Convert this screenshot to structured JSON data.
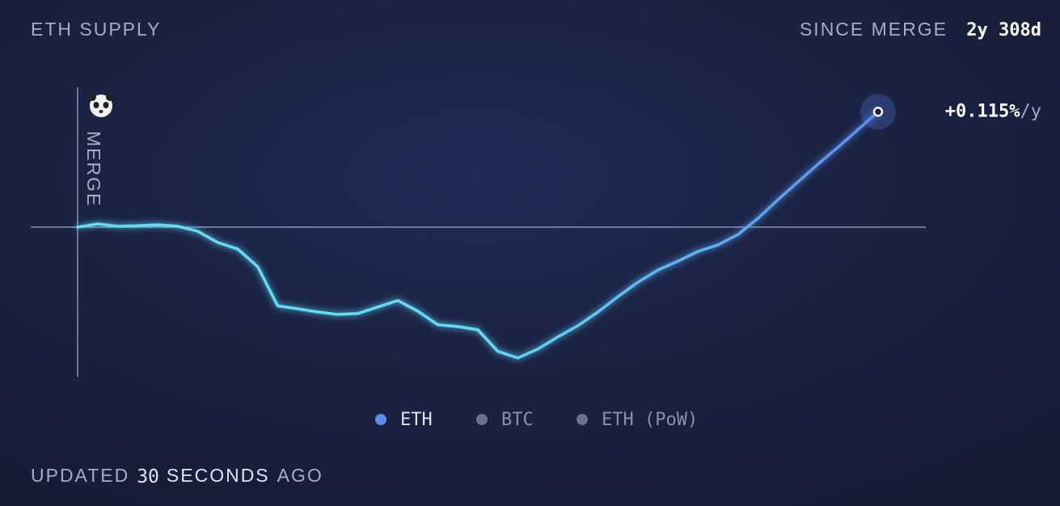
{
  "chart_data": {
    "type": "line",
    "title": "ETH SUPPLY",
    "since_label": "SINCE MERGE",
    "since_value": "2y 308d",
    "annotation": "MERGE",
    "end_label": {
      "rate": "+0.115%",
      "unit": "/y"
    },
    "series": [
      {
        "name": "ETH",
        "color": "#5b8cf0",
        "glow_color": "#62dcf5",
        "values": [
          0,
          11,
          3,
          5,
          8,
          3,
          -14,
          -52,
          -74,
          -134,
          -266,
          -276,
          -287,
          -295,
          -292,
          -270,
          -248,
          -284,
          -330,
          -336,
          -347,
          -420,
          -442,
          -412,
          -371,
          -333,
          -287,
          -235,
          -186,
          -145,
          -115,
          -82,
          -60,
          -25,
          30,
          93,
          153,
          213,
          270,
          330,
          390
        ]
      }
    ],
    "inactive_series": [
      {
        "name": "BTC",
        "color": "#6b7190"
      },
      {
        "name": "ETH (PoW)",
        "color": "#6b7190"
      }
    ],
    "ylim": [
      -500,
      500
    ],
    "footer": [
      "UPDATED",
      "30",
      "SECONDS",
      "AGO"
    ]
  }
}
